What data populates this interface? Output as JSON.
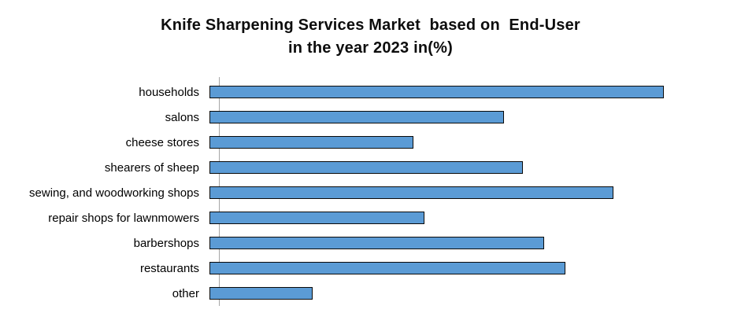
{
  "title": {
    "line1": "Knife Sharpening Services Market  based on  End-User",
    "line2": "in the year 2023 in(%)"
  },
  "chart_data": {
    "type": "bar",
    "orientation": "horizontal",
    "title": "Knife Sharpening Services Market based on End-User in the year 2023 in(%)",
    "categories": [
      "households",
      "salons",
      "cheese stores",
      "shearers of sheep",
      "sewing, and woodworking shops",
      "repair shops for lawnmowers",
      "barbershops",
      "restaurants",
      "other"
    ],
    "values": [
      17.0,
      11.0,
      7.6,
      11.7,
      15.1,
      8.0,
      12.5,
      13.3,
      3.8
    ],
    "unit": "%",
    "xlabel": "",
    "ylabel": "",
    "xlim": [
      0,
      19.6
    ],
    "grid": false,
    "legend": false,
    "value_labels_shown": false,
    "axis_tick_labels_shown": false,
    "bar_color": "#5b9bd5",
    "bar_border_color": "#0a0a0a",
    "axis_line_color": "#a6a6a6",
    "background": "#ffffff"
  }
}
